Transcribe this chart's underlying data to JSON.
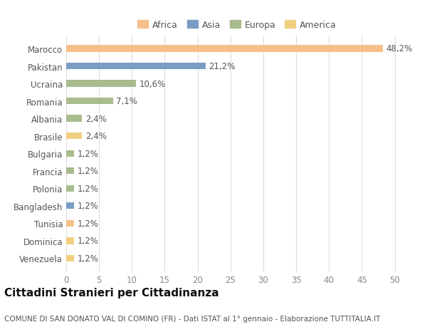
{
  "countries": [
    "Marocco",
    "Pakistan",
    "Ucraina",
    "Romania",
    "Albania",
    "Brasile",
    "Bulgaria",
    "Francia",
    "Polonia",
    "Bangladesh",
    "Tunisia",
    "Dominica",
    "Venezuela"
  ],
  "values": [
    48.2,
    21.2,
    10.6,
    7.1,
    2.4,
    2.4,
    1.2,
    1.2,
    1.2,
    1.2,
    1.2,
    1.2,
    1.2
  ],
  "labels": [
    "48,2%",
    "21,2%",
    "10,6%",
    "7,1%",
    "2,4%",
    "2,4%",
    "1,2%",
    "1,2%",
    "1,2%",
    "1,2%",
    "1,2%",
    "1,2%",
    "1,2%"
  ],
  "continents": [
    "Africa",
    "Asia",
    "Europa",
    "Europa",
    "Europa",
    "America",
    "Europa",
    "Europa",
    "Europa",
    "Asia",
    "Africa",
    "America",
    "America"
  ],
  "continent_colors": {
    "Africa": "#F5C08A",
    "Asia": "#7A9DC4",
    "Europa": "#A8BC8E",
    "America": "#F0D080"
  },
  "legend_order": [
    "Africa",
    "Asia",
    "Europa",
    "America"
  ],
  "title": "Cittadini Stranieri per Cittadinanza",
  "subtitle": "COMUNE DI SAN DONATO VAL DI COMINO (FR) - Dati ISTAT al 1° gennaio - Elaborazione TUTTITALIA.IT",
  "xlim": [
    0,
    52
  ],
  "xticks": [
    0,
    5,
    10,
    15,
    20,
    25,
    30,
    35,
    40,
    45,
    50
  ],
  "background_color": "#ffffff",
  "grid_color": "#dddddd",
  "bar_height": 0.38,
  "label_fontsize": 8.5,
  "tick_fontsize": 8.5,
  "title_fontsize": 11,
  "subtitle_fontsize": 7.5
}
